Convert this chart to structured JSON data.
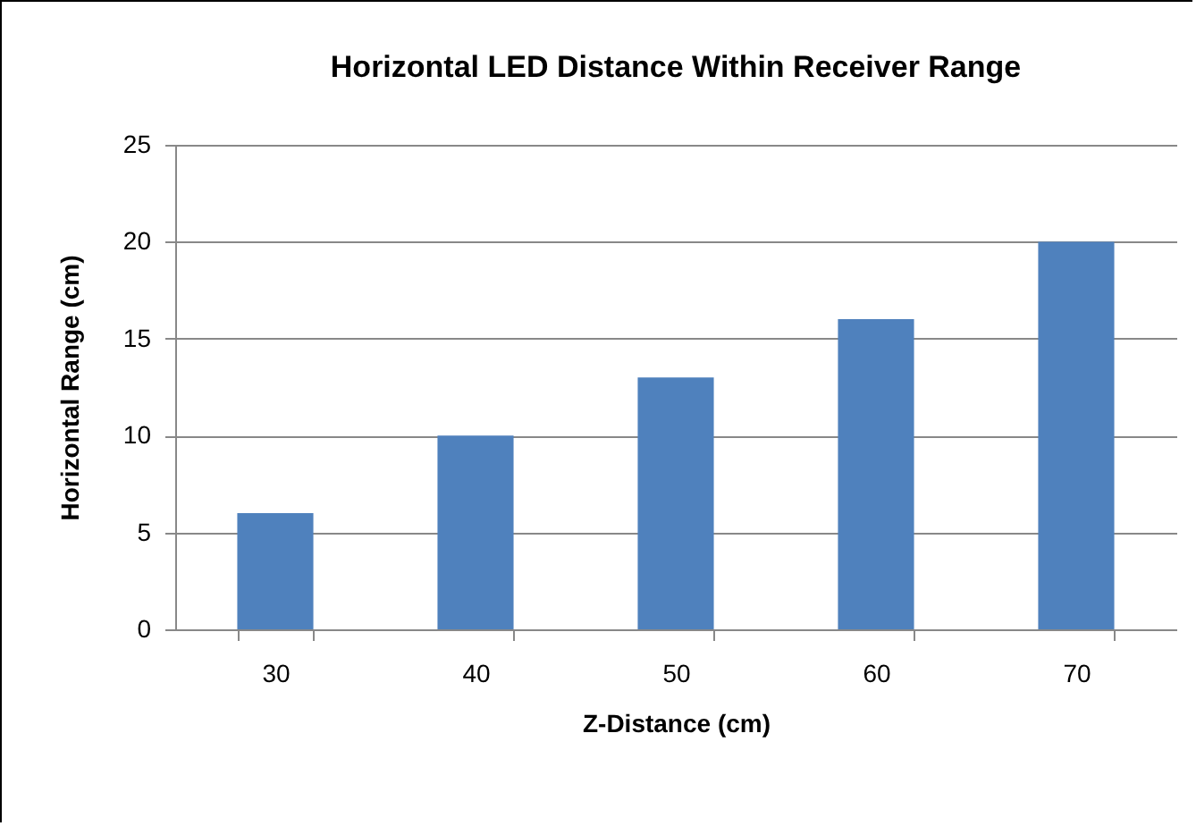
{
  "chart_data": {
    "type": "bar",
    "title": "Horizontal LED Distance Within Receiver Range",
    "xlabel": "Z-Distance (cm)",
    "ylabel": "Horizontal Range (cm)",
    "categories": [
      "30",
      "40",
      "50",
      "60",
      "70"
    ],
    "values": [
      6,
      10,
      13,
      16,
      20
    ],
    "color": "#4f81bd",
    "ylim": [
      0,
      25
    ],
    "yticks": [
      0,
      5,
      10,
      15,
      20,
      25
    ],
    "grid": "y"
  }
}
